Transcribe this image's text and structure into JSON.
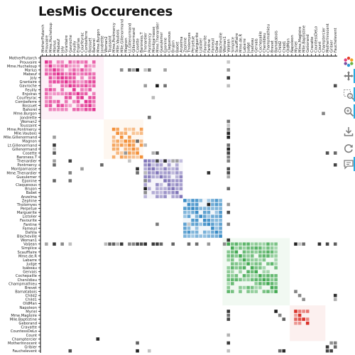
{
  "title": "LesMis Occurences",
  "chart_data": {
    "type": "heatmap",
    "title": "LesMis Occurences",
    "characters": [
      "MotherPlutarch",
      "Prouvaire",
      "Mme.Hucheloup",
      "Marius",
      "Mabeuf",
      "Joly",
      "Grantaire",
      "Gavroche",
      "Feuilly",
      "Enjolras",
      "Courfeyrac",
      "Combeferre",
      "Bossuet",
      "Bahorel",
      "Mme.Burgon",
      "Jondrette",
      "Woman2",
      "Toussaint",
      "Mme.Pontmercy",
      "Mlle.Vaubois",
      "Mlle.Gillenormand",
      "Magnon",
      "Lt.Gillenormand",
      "Gillenormand",
      "Cosette",
      "Baroness.T",
      "Thenardier",
      "Pontmercy",
      "Montparnasse",
      "Mme.Thenardier",
      "Gueulemer",
      "Eponine",
      "Claquesous",
      "Brujon",
      "Babet",
      "Anzelma",
      "Zephine",
      "Tholomyes",
      "Perpetue",
      "Marguerite",
      "Listolier",
      "Favourite",
      "Fantine",
      "Fameuil",
      "Dahlia",
      "Blacheville",
      "Woman1",
      "Valjean",
      "Simplice",
      "Scaufflaire",
      "Mme.de.R",
      "Labarre",
      "Judge",
      "Isabeau",
      "Gervais",
      "Cochepaille",
      "Chenildieu",
      "Champmathieu",
      "Brevet",
      "Bamatabois",
      "Child2",
      "Child1",
      "OldMan",
      "Napoleon",
      "Myriel",
      "Mme.Magloire",
      "Mlle.Baptistine",
      "Geborand",
      "Cravatte",
      "CountessDeLo",
      "Count",
      "Champtercier",
      "MotherInnocent",
      "Gribier",
      "Fauchelevent"
    ],
    "groups": [
      {
        "name": "1",
        "start": 0,
        "end": 15,
        "color": "#e0288b"
      },
      {
        "name": "2",
        "start": 16,
        "end": 25,
        "color": "#f28a2e"
      },
      {
        "name": "3",
        "start": 26,
        "end": 35,
        "color": "#7a6fb5"
      },
      {
        "name": "4",
        "start": 36,
        "end": 45,
        "color": "#2f86c3"
      },
      {
        "name": "5",
        "start": 46,
        "end": 62,
        "color": "#3aa54a"
      },
      {
        "name": "6",
        "start": 63,
        "end": 71,
        "color": "#d8261d"
      },
      {
        "name": "7",
        "start": 72,
        "end": 74,
        "color": "#7f7f7f"
      }
    ],
    "dense_blocks": [
      {
        "start": 1,
        "end": 13,
        "color": "#e0288b"
      },
      {
        "start": 18,
        "end": 25,
        "color": "#f28a2e"
      },
      {
        "start": 26,
        "end": 35,
        "color": "#7a6fb5"
      },
      {
        "start": 36,
        "end": 45,
        "color": "#2f86c3"
      },
      {
        "start": 47,
        "end": 59,
        "color": "#3aa54a"
      },
      {
        "start": 64,
        "end": 67,
        "color": "#d8261d"
      }
    ],
    "cross_links": [
      [
        47,
        3
      ],
      [
        47,
        7
      ],
      [
        47,
        5
      ],
      [
        47,
        1
      ],
      [
        47,
        16
      ],
      [
        47,
        17
      ],
      [
        47,
        18
      ],
      [
        47,
        19
      ],
      [
        47,
        20
      ],
      [
        47,
        22
      ],
      [
        47,
        23
      ],
      [
        47,
        24
      ],
      [
        47,
        25
      ],
      [
        47,
        26
      ],
      [
        47,
        28
      ],
      [
        47,
        29
      ],
      [
        47,
        30
      ],
      [
        47,
        33
      ],
      [
        47,
        42
      ],
      [
        47,
        46
      ],
      [
        47,
        64
      ],
      [
        47,
        65
      ],
      [
        47,
        66
      ],
      [
        47,
        70
      ],
      [
        47,
        72
      ],
      [
        47,
        74
      ],
      [
        47,
        39
      ],
      [
        47,
        37
      ],
      [
        3,
        23
      ],
      [
        3,
        24
      ],
      [
        3,
        22
      ],
      [
        3,
        27
      ],
      [
        3,
        31
      ],
      [
        3,
        26
      ],
      [
        7,
        26
      ],
      [
        7,
        29
      ],
      [
        7,
        31
      ],
      [
        7,
        47
      ],
      [
        7,
        74
      ],
      [
        24,
        28
      ],
      [
        24,
        21
      ],
      [
        24,
        29
      ],
      [
        24,
        74
      ],
      [
        24,
        72
      ],
      [
        26,
        29
      ],
      [
        26,
        31
      ],
      [
        26,
        33
      ],
      [
        26,
        34
      ],
      [
        26,
        22
      ],
      [
        42,
        29
      ],
      [
        42,
        37
      ],
      [
        74,
        72
      ],
      [
        74,
        73
      ],
      [
        74,
        27
      ],
      [
        74,
        60
      ],
      [
        74,
        61
      ],
      [
        64,
        59
      ],
      [
        65,
        60
      ],
      [
        66,
        61
      ],
      [
        10,
        28
      ],
      [
        3,
        20
      ],
      [
        15,
        27
      ],
      [
        71,
        14
      ],
      [
        73,
        72
      ]
    ],
    "xlabel": "",
    "ylabel": ""
  },
  "toolbar": {
    "tools": [
      {
        "name": "bokeh-logo-icon"
      },
      {
        "name": "pan-icon"
      },
      {
        "name": "box-zoom-icon"
      },
      {
        "name": "wheel-zoom-icon"
      },
      {
        "name": "save-icon"
      },
      {
        "name": "reset-icon"
      },
      {
        "name": "hover-icon"
      }
    ],
    "accent": "#26aae1"
  }
}
